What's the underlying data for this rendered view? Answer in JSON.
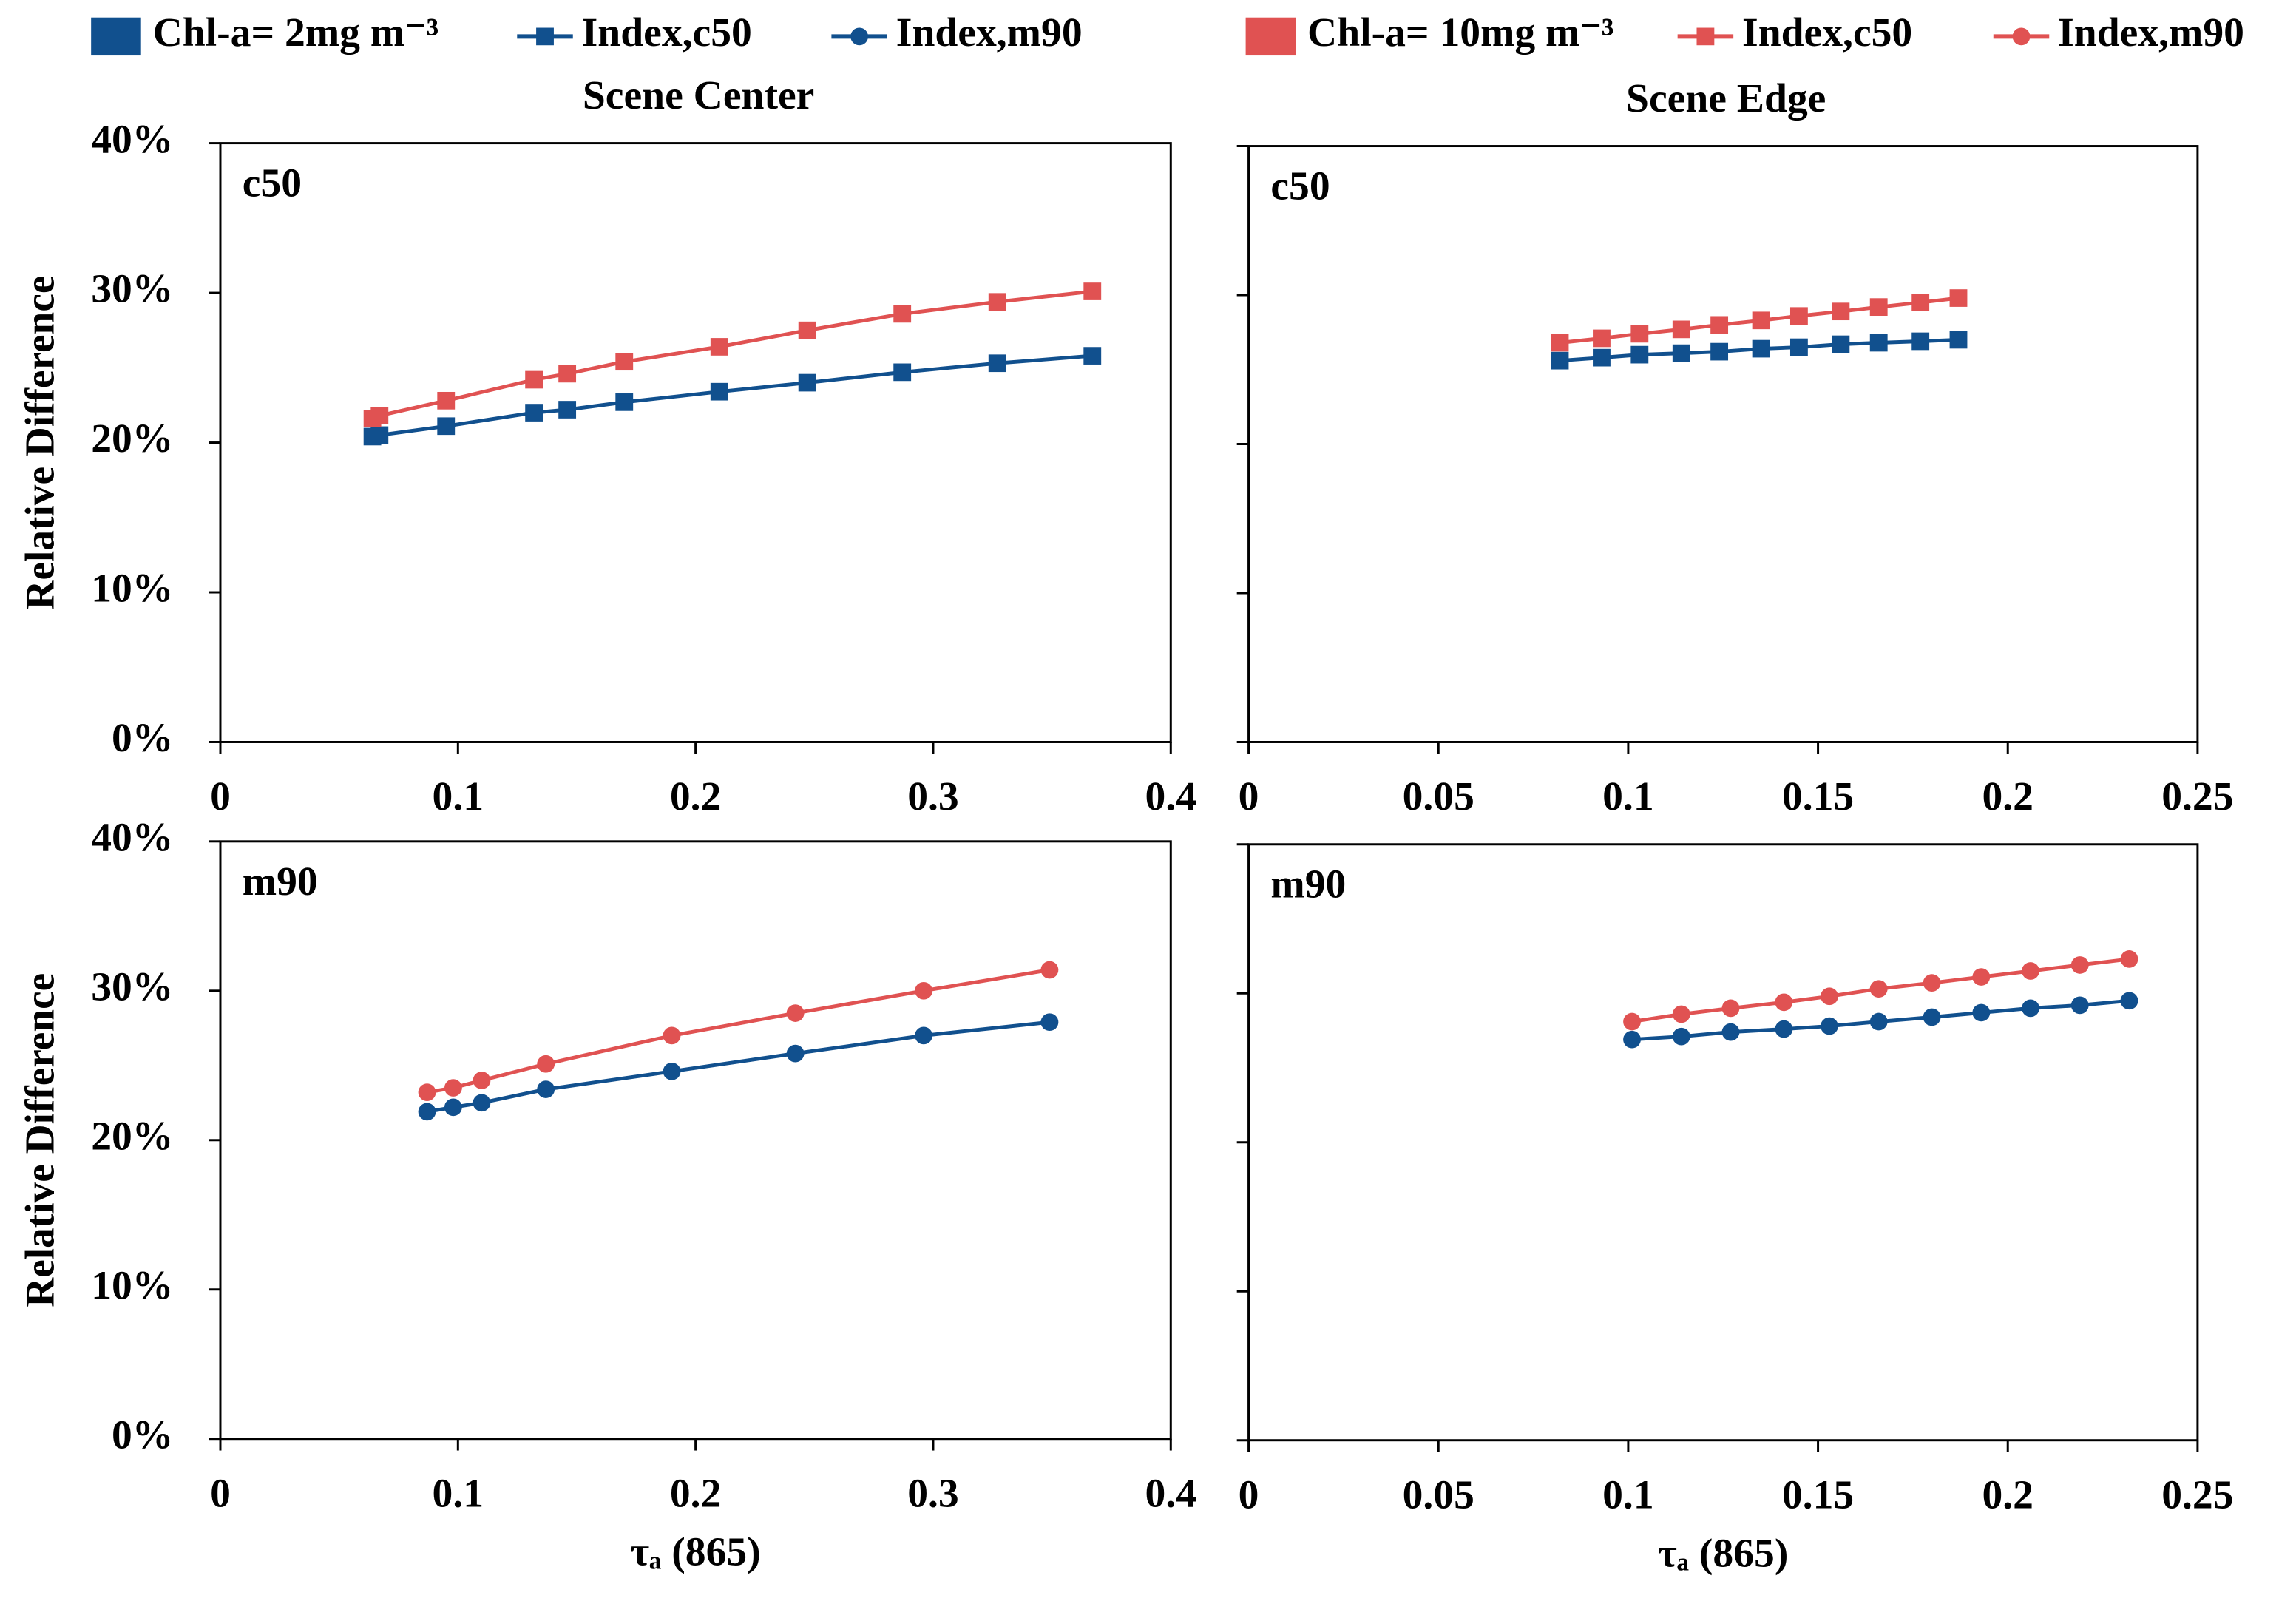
{
  "legend_markers": [
    {
      "label": "Index,c50",
      "marker": "square"
    },
    {
      "label": "Index,m90",
      "marker": "circle"
    }
  ],
  "chart_data": [
    {
      "type": "line",
      "title": "Scene Center",
      "annotation": "c50",
      "ylabel": "Relative Difference",
      "marker": "square",
      "x": [
        0.064,
        0.067,
        0.095,
        0.132,
        0.146,
        0.17,
        0.21,
        0.247,
        0.287,
        0.327,
        0.367
      ],
      "series": [
        {
          "name": "Chl-a= 2mg m⁻³",
          "color": "#11508e",
          "values": [
            20.4,
            20.5,
            21.1,
            22.0,
            22.2,
            22.7,
            23.4,
            24.0,
            24.7,
            25.3,
            25.8
          ]
        },
        {
          "name": "Chl-a= 10mg m⁻³",
          "color": "#e05252",
          "values": [
            21.6,
            21.8,
            22.8,
            24.2,
            24.6,
            25.4,
            26.4,
            27.5,
            28.6,
            29.4,
            30.1
          ]
        }
      ],
      "xlim": [
        0,
        0.4
      ],
      "xticks": [
        0,
        0.1,
        0.2,
        0.3,
        0.4
      ],
      "ylim": [
        0,
        40
      ],
      "yticks": [
        {
          "value": 0,
          "label": "0%"
        },
        {
          "value": 10,
          "label": "10%"
        },
        {
          "value": 20,
          "label": "20%"
        },
        {
          "value": 30,
          "label": "30%"
        },
        {
          "value": 40,
          "label": "40%"
        }
      ],
      "show_ytick_labels": true
    },
    {
      "type": "line",
      "title": "Scene Edge",
      "annotation": "c50",
      "marker": "square",
      "x": [
        0.082,
        0.093,
        0.103,
        0.114,
        0.124,
        0.135,
        0.145,
        0.156,
        0.166,
        0.177,
        0.187
      ],
      "series": [
        {
          "color": "#11508e",
          "values": [
            25.6,
            25.8,
            26.0,
            26.1,
            26.2,
            26.4,
            26.5,
            26.7,
            26.8,
            26.9,
            27.0
          ]
        },
        {
          "color": "#e05252",
          "values": [
            26.8,
            27.1,
            27.4,
            27.7,
            28.0,
            28.3,
            28.6,
            28.9,
            29.2,
            29.5,
            29.8
          ]
        }
      ],
      "xlim": [
        0,
        0.25
      ],
      "xticks": [
        0,
        0.05,
        0.1,
        0.15,
        0.2,
        0.25
      ],
      "ylim": [
        0,
        40
      ],
      "yticks": [
        0,
        10,
        20,
        30,
        40
      ],
      "show_ytick_labels": false
    },
    {
      "type": "line",
      "annotation": "m90",
      "ylabel": "Relative Difference",
      "xlabel": "τₐ (865)",
      "marker": "circle",
      "x": [
        0.087,
        0.098,
        0.11,
        0.137,
        0.19,
        0.242,
        0.296,
        0.349
      ],
      "series": [
        {
          "color": "#11508e",
          "values": [
            21.9,
            22.2,
            22.5,
            23.4,
            24.6,
            25.8,
            27.0,
            27.9
          ]
        },
        {
          "color": "#e05252",
          "values": [
            23.2,
            23.5,
            24.0,
            25.1,
            27.0,
            28.5,
            30.0,
            31.4
          ]
        }
      ],
      "xlim": [
        0,
        0.4
      ],
      "xticks": [
        0,
        0.1,
        0.2,
        0.3,
        0.4
      ],
      "ylim": [
        0,
        40
      ],
      "yticks": [
        {
          "value": 0,
          "label": "0%"
        },
        {
          "value": 10,
          "label": "10%"
        },
        {
          "value": 20,
          "label": "20%"
        },
        {
          "value": 30,
          "label": "30%"
        },
        {
          "value": 40,
          "label": "40%"
        }
      ],
      "show_ytick_labels": true
    },
    {
      "type": "line",
      "annotation": "m90",
      "xlabel": "τₐ (865)",
      "marker": "circle",
      "x": [
        0.101,
        0.114,
        0.127,
        0.141,
        0.153,
        0.166,
        0.18,
        0.193,
        0.206,
        0.219,
        0.232
      ],
      "series": [
        {
          "color": "#11508e",
          "values": [
            26.9,
            27.1,
            27.4,
            27.6,
            27.8,
            28.1,
            28.4,
            28.7,
            29.0,
            29.2,
            29.5
          ]
        },
        {
          "color": "#e05252",
          "values": [
            28.1,
            28.6,
            29.0,
            29.4,
            29.8,
            30.3,
            30.7,
            31.1,
            31.5,
            31.9,
            32.3
          ]
        }
      ],
      "xlim": [
        0,
        0.25
      ],
      "xticks": [
        0,
        0.05,
        0.1,
        0.15,
        0.2,
        0.25
      ],
      "ylim": [
        0,
        40
      ],
      "yticks": [
        0,
        10,
        20,
        30,
        40
      ],
      "show_ytick_labels": false
    }
  ]
}
